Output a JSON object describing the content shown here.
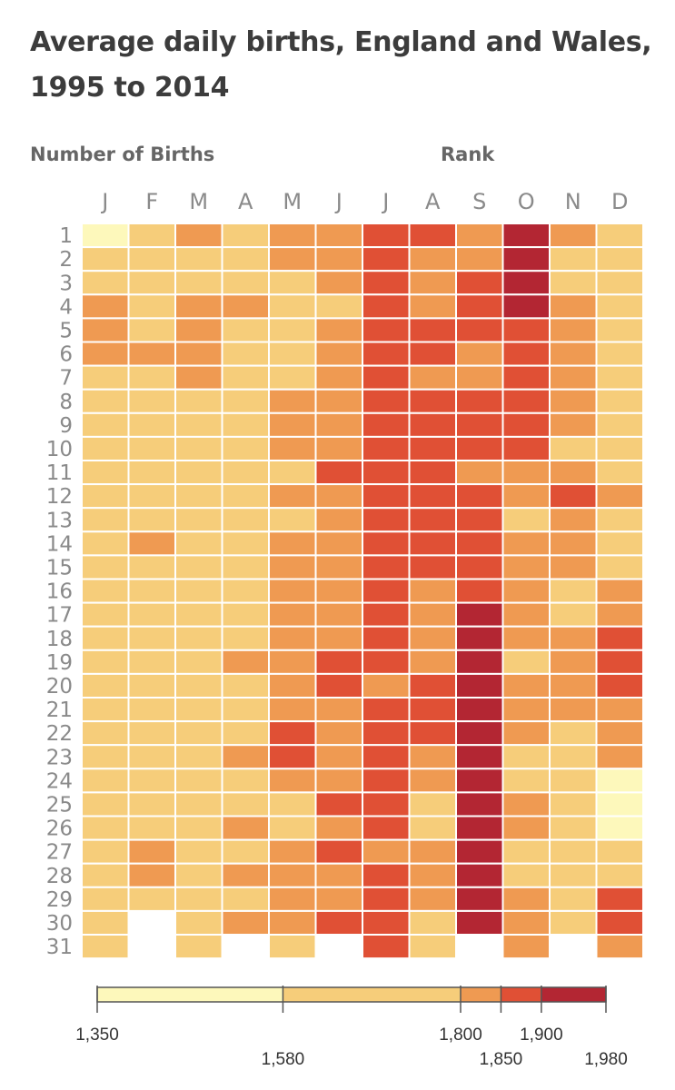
{
  "header": {
    "title": "Average daily births, England and Wales, 1995 to 2014",
    "number_label": "Number of Births",
    "rank_label": "Rank"
  },
  "chart_data": {
    "type": "heatmap",
    "title": "Average daily births, England and Wales, 1995 to 2014",
    "x_categories": [
      "J",
      "F",
      "M",
      "A",
      "M",
      "J",
      "J",
      "A",
      "S",
      "O",
      "N",
      "D"
    ],
    "y_categories": [
      "1",
      "2",
      "3",
      "4",
      "5",
      "6",
      "7",
      "8",
      "9",
      "10",
      "11",
      "12",
      "13",
      "14",
      "15",
      "16",
      "17",
      "18",
      "19",
      "20",
      "21",
      "22",
      "23",
      "24",
      "25",
      "26",
      "27",
      "28",
      "29",
      "30",
      "31"
    ],
    "color_bins": [
      {
        "min": 1350,
        "max": 1580,
        "color": "#fdf8bb"
      },
      {
        "min": 1580,
        "max": 1800,
        "color": "#f6cd7a"
      },
      {
        "min": 1800,
        "max": 1850,
        "color": "#ef9a52"
      },
      {
        "min": 1850,
        "max": 1900,
        "color": "#e05035"
      },
      {
        "min": 1900,
        "max": 1980,
        "color": "#b32633"
      }
    ],
    "legend_ticks": [
      "1,350",
      "1,580",
      "1,800",
      "1,850",
      "1,900",
      "1,980"
    ],
    "legend_values": [
      1350,
      1580,
      1800,
      1850,
      1900,
      1980
    ],
    "bin_rows_note": "values are color-bin indices 0-4 per day (rows) and month (columns); null = day does not exist",
    "bins": [
      [
        0,
        1,
        2,
        1,
        2,
        2,
        3,
        3,
        2,
        4,
        2,
        1
      ],
      [
        1,
        1,
        1,
        1,
        2,
        2,
        3,
        2,
        2,
        4,
        1,
        1
      ],
      [
        1,
        1,
        1,
        1,
        1,
        2,
        3,
        2,
        3,
        4,
        1,
        1
      ],
      [
        2,
        1,
        2,
        2,
        1,
        1,
        3,
        2,
        3,
        4,
        2,
        1
      ],
      [
        2,
        1,
        2,
        1,
        1,
        2,
        3,
        3,
        3,
        3,
        2,
        1
      ],
      [
        2,
        2,
        2,
        1,
        1,
        2,
        3,
        3,
        2,
        3,
        2,
        1
      ],
      [
        1,
        1,
        2,
        1,
        1,
        2,
        3,
        2,
        2,
        3,
        2,
        1
      ],
      [
        1,
        1,
        1,
        1,
        2,
        2,
        3,
        3,
        3,
        3,
        2,
        1
      ],
      [
        1,
        1,
        1,
        1,
        2,
        2,
        3,
        3,
        3,
        3,
        2,
        1
      ],
      [
        1,
        1,
        1,
        1,
        2,
        2,
        3,
        3,
        3,
        3,
        1,
        1
      ],
      [
        1,
        1,
        1,
        1,
        1,
        3,
        3,
        3,
        2,
        2,
        2,
        1
      ],
      [
        1,
        1,
        1,
        1,
        2,
        2,
        3,
        3,
        3,
        2,
        3,
        2
      ],
      [
        1,
        1,
        1,
        1,
        1,
        2,
        3,
        3,
        3,
        1,
        2,
        1
      ],
      [
        1,
        2,
        1,
        1,
        2,
        2,
        3,
        3,
        3,
        2,
        2,
        1
      ],
      [
        1,
        1,
        1,
        1,
        2,
        2,
        3,
        3,
        3,
        2,
        2,
        1
      ],
      [
        1,
        1,
        1,
        1,
        2,
        2,
        3,
        2,
        3,
        2,
        1,
        2
      ],
      [
        1,
        1,
        1,
        1,
        2,
        2,
        3,
        2,
        4,
        2,
        1,
        2
      ],
      [
        1,
        1,
        1,
        1,
        2,
        2,
        3,
        2,
        4,
        2,
        2,
        3
      ],
      [
        1,
        1,
        1,
        2,
        2,
        3,
        3,
        2,
        4,
        1,
        2,
        3
      ],
      [
        1,
        1,
        1,
        1,
        2,
        3,
        2,
        3,
        4,
        2,
        2,
        3
      ],
      [
        1,
        1,
        1,
        1,
        2,
        2,
        3,
        3,
        4,
        2,
        2,
        2
      ],
      [
        1,
        1,
        1,
        1,
        3,
        2,
        3,
        3,
        4,
        2,
        1,
        2
      ],
      [
        1,
        1,
        1,
        2,
        3,
        2,
        3,
        2,
        4,
        1,
        1,
        2
      ],
      [
        1,
        1,
        1,
        1,
        2,
        2,
        3,
        2,
        4,
        1,
        1,
        0
      ],
      [
        1,
        1,
        1,
        1,
        1,
        3,
        3,
        1,
        4,
        2,
        1,
        0
      ],
      [
        1,
        1,
        1,
        2,
        1,
        2,
        3,
        1,
        4,
        2,
        1,
        0
      ],
      [
        1,
        2,
        1,
        1,
        2,
        3,
        2,
        2,
        4,
        1,
        1,
        1
      ],
      [
        1,
        2,
        1,
        2,
        2,
        2,
        3,
        2,
        4,
        1,
        1,
        1
      ],
      [
        1,
        1,
        1,
        1,
        2,
        2,
        3,
        2,
        4,
        2,
        1,
        3
      ],
      [
        1,
        null,
        1,
        2,
        2,
        3,
        3,
        1,
        4,
        2,
        1,
        3
      ],
      [
        1,
        null,
        1,
        null,
        1,
        null,
        3,
        1,
        null,
        2,
        null,
        2
      ]
    ]
  }
}
